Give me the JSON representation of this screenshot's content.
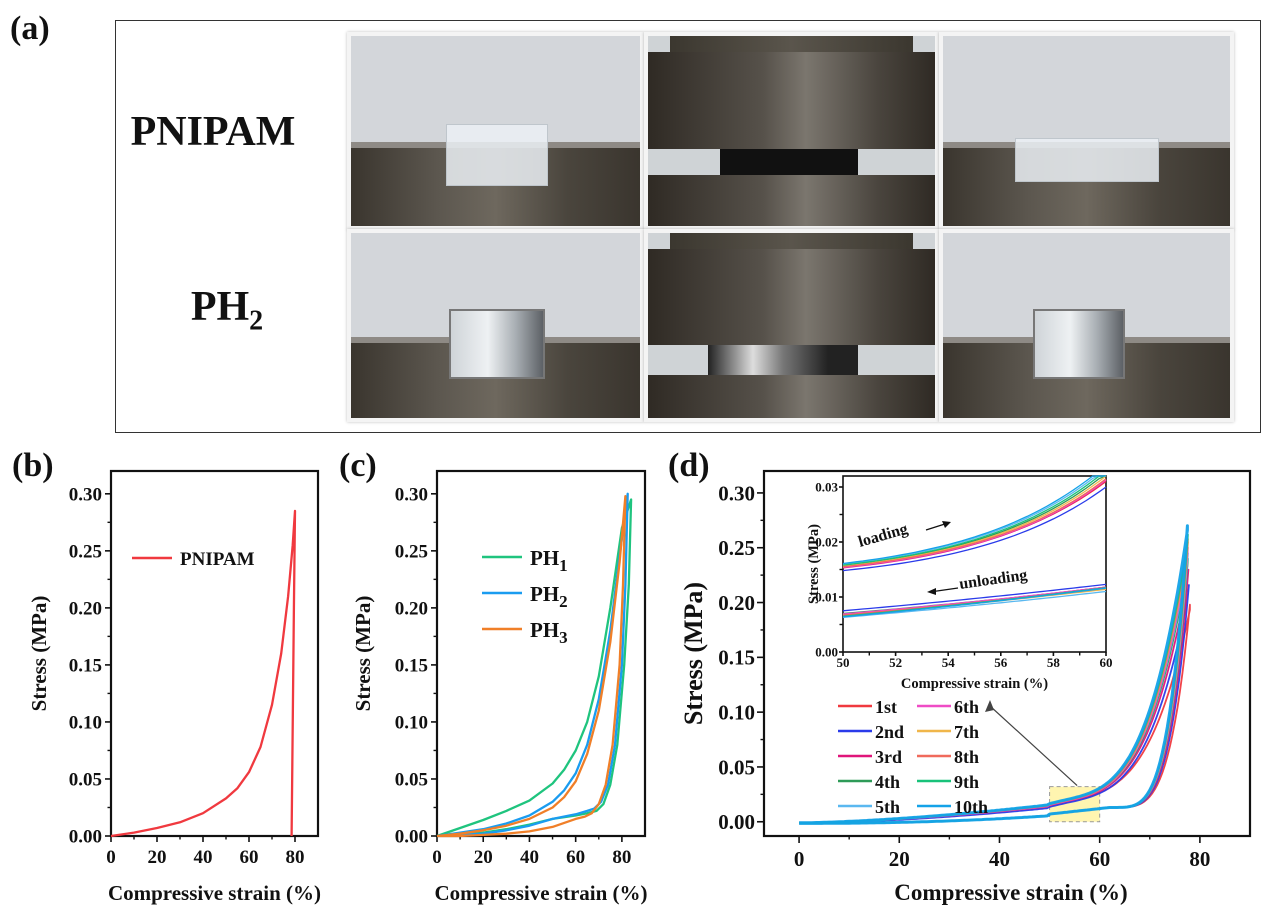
{
  "panel_a": {
    "label": "(a)",
    "rows": [
      {
        "name": "PNIPAM",
        "sub": ""
      },
      {
        "name": "PH",
        "sub": "2"
      }
    ],
    "photo_states": [
      "original",
      "compressed",
      "released"
    ]
  },
  "chart_data": [
    {
      "id": "b",
      "panel_label": "(b)",
      "type": "line",
      "xlabel": "Compressive strain (%)",
      "ylabel": "Stress (MPa)",
      "xlim": [
        0,
        90
      ],
      "ylim": [
        0,
        0.32
      ],
      "xticks": [
        0,
        20,
        40,
        60,
        80
      ],
      "yticks": [
        0.0,
        0.05,
        0.1,
        0.15,
        0.2,
        0.25,
        0.3
      ],
      "ytick_labels": [
        "0.00",
        "0.05",
        "0.10",
        "0.15",
        "0.20",
        "0.25",
        "0.30"
      ],
      "legend_position": "upper-left",
      "series": [
        {
          "name": "PNIPAM",
          "color": "#f0393f",
          "x": [
            0,
            10,
            20,
            30,
            40,
            50,
            55,
            60,
            65,
            70,
            74,
            77,
            79,
            80,
            79.5,
            78.5
          ],
          "y": [
            0,
            0.003,
            0.007,
            0.012,
            0.02,
            0.033,
            0.042,
            0.056,
            0.078,
            0.115,
            0.16,
            0.21,
            0.255,
            0.285,
            0.2,
            0.0
          ]
        }
      ]
    },
    {
      "id": "c",
      "panel_label": "(c)",
      "type": "line",
      "xlabel": "Compressive strain (%)",
      "ylabel": "Stress (MPa)",
      "xlim": [
        0,
        90
      ],
      "ylim": [
        0,
        0.32
      ],
      "xticks": [
        0,
        20,
        40,
        60,
        80
      ],
      "yticks": [
        0.0,
        0.05,
        0.1,
        0.15,
        0.2,
        0.25,
        0.3
      ],
      "ytick_labels": [
        "0.00",
        "0.05",
        "0.10",
        "0.15",
        "0.20",
        "0.25",
        "0.30"
      ],
      "legend_position": "upper-left",
      "series": [
        {
          "name": "PH",
          "sub": "1",
          "color": "#1fc47e",
          "x": [
            0,
            10,
            20,
            30,
            40,
            50,
            55,
            60,
            65,
            70,
            75,
            80,
            84,
            83,
            81,
            78,
            75,
            72,
            69,
            65,
            60,
            50,
            40,
            30,
            20,
            10,
            0
          ],
          "y": [
            0,
            0.007,
            0.014,
            0.022,
            0.031,
            0.046,
            0.058,
            0.075,
            0.1,
            0.14,
            0.2,
            0.27,
            0.295,
            0.22,
            0.15,
            0.08,
            0.045,
            0.028,
            0.022,
            0.02,
            0.018,
            0.015,
            0.01,
            0.006,
            0.003,
            0.001,
            0
          ]
        },
        {
          "name": "PH",
          "sub": "2",
          "color": "#1a9cf0",
          "x": [
            0,
            10,
            20,
            30,
            40,
            50,
            55,
            60,
            65,
            70,
            75,
            79,
            82.5,
            81.5,
            80,
            77,
            74,
            71,
            68,
            65,
            60,
            50,
            40,
            30,
            20,
            10,
            0
          ],
          "y": [
            0,
            0.003,
            0.006,
            0.011,
            0.018,
            0.03,
            0.04,
            0.055,
            0.08,
            0.12,
            0.18,
            0.245,
            0.3,
            0.22,
            0.15,
            0.08,
            0.045,
            0.03,
            0.024,
            0.022,
            0.019,
            0.015,
            0.009,
            0.005,
            0.002,
            0.001,
            0
          ]
        },
        {
          "name": "PH",
          "sub": "3",
          "color": "#f07f28",
          "x": [
            0,
            10,
            20,
            30,
            40,
            50,
            55,
            60,
            65,
            70,
            75,
            79,
            81.5,
            80.5,
            79,
            76,
            73,
            70,
            67,
            64,
            60,
            50,
            40,
            30,
            20,
            10,
            0
          ],
          "y": [
            0,
            0.002,
            0.005,
            0.009,
            0.015,
            0.025,
            0.034,
            0.048,
            0.072,
            0.11,
            0.17,
            0.24,
            0.298,
            0.22,
            0.15,
            0.08,
            0.045,
            0.028,
            0.02,
            0.017,
            0.015,
            0.008,
            0.004,
            0.002,
            0.001,
            0,
            0
          ]
        }
      ]
    },
    {
      "id": "d",
      "panel_label": "(d)",
      "type": "line",
      "xlabel": "Compressive strain (%)",
      "ylabel": "Stress (MPa)",
      "xlim": [
        -7,
        90
      ],
      "ylim": [
        -0.013,
        0.32
      ],
      "xticks": [
        0,
        20,
        40,
        60,
        80
      ],
      "yticks": [
        0.0,
        0.05,
        0.1,
        0.15,
        0.2,
        0.25,
        0.3
      ],
      "ytick_labels": [
        "0.00",
        "0.05",
        "0.10",
        "0.15",
        "0.20",
        "0.25",
        "0.30"
      ],
      "legend_position": "lower-center",
      "highlight_box": {
        "x": [
          50,
          60
        ],
        "y": [
          0,
          0.032
        ],
        "color": "#fff4a3"
      },
      "series": [
        {
          "name": "1st",
          "color": "#f0393f",
          "peak": 0.198,
          "peak_x": 78.0,
          "shift": -0.001
        },
        {
          "name": "2nd",
          "color": "#2a3bea",
          "peak": 0.216,
          "peak_x": 77.8,
          "shift": -0.002
        },
        {
          "name": "3rd",
          "color": "#e0157a",
          "peak": 0.23,
          "peak_x": 77.7,
          "shift": -0.0005
        },
        {
          "name": "4th",
          "color": "#2e9b58",
          "peak": 0.24,
          "peak_x": 77.6,
          "shift": 0.0
        },
        {
          "name": "5th",
          "color": "#5ab8f0",
          "peak": 0.245,
          "peak_x": 77.6,
          "shift": 0.0005
        },
        {
          "name": "6th",
          "color": "#ef4cc6",
          "peak": 0.25,
          "peak_x": 77.6,
          "shift": -0.0003
        },
        {
          "name": "7th",
          "color": "#f0b64a",
          "peak": 0.255,
          "peak_x": 77.6,
          "shift": 0.0003
        },
        {
          "name": "8th",
          "color": "#f06a5c",
          "peak": 0.258,
          "peak_x": 77.6,
          "shift": 0.0001
        },
        {
          "name": "9th",
          "color": "#18c27a",
          "peak": 0.262,
          "peak_x": 77.6,
          "shift": 0.0008
        },
        {
          "name": "10th",
          "color": "#14a2e8",
          "peak": 0.27,
          "peak_x": 77.5,
          "shift": 0.001
        }
      ],
      "inset": {
        "type": "line",
        "xlabel": "Compressive strain (%)",
        "ylabel": "Stress (MPa)",
        "xlim": [
          50,
          60
        ],
        "ylim": [
          0,
          0.032
        ],
        "xticks": [
          50,
          52,
          54,
          56,
          58,
          60
        ],
        "yticks": [
          0.0,
          0.01,
          0.02,
          0.03
        ],
        "ytick_labels": [
          "0.00",
          "0.01",
          "0.02",
          "0.03"
        ],
        "annotations": [
          {
            "text": "loading",
            "direction": "right"
          },
          {
            "text": "unloading",
            "direction": "left"
          }
        ],
        "loading_start": {
          "1st": 0.0155,
          "2nd": 0.0148,
          "3rd": 0.0153,
          "4th": 0.0157,
          "5th": 0.016,
          "6th": 0.0154,
          "7th": 0.0156,
          "8th": 0.0155,
          "9th": 0.0158,
          "10th": 0.0161
        },
        "loading_end_at_60": {
          "1st": 0.031,
          "2nd": 0.03,
          "3rd": 0.0312,
          "4th": 0.0325,
          "5th": 0.0335,
          "6th": 0.0313,
          "7th": 0.032,
          "8th": 0.0315,
          "9th": 0.033,
          "10th": 0.034
        },
        "unloading_start": {
          "1st": 0.0068,
          "2nd": 0.0075,
          "3rd": 0.0068,
          "4th": 0.007,
          "5th": 0.0063,
          "6th": 0.0069,
          "7th": 0.0066,
          "8th": 0.0067,
          "9th": 0.0065,
          "10th": 0.0064
        },
        "unloading_end_at_60": {
          "1st": 0.0118,
          "2nd": 0.0123,
          "3rd": 0.0118,
          "4th": 0.0117,
          "5th": 0.011,
          "6th": 0.0118,
          "7th": 0.0114,
          "8th": 0.0116,
          "9th": 0.0117,
          "10th": 0.0116
        }
      }
    }
  ]
}
